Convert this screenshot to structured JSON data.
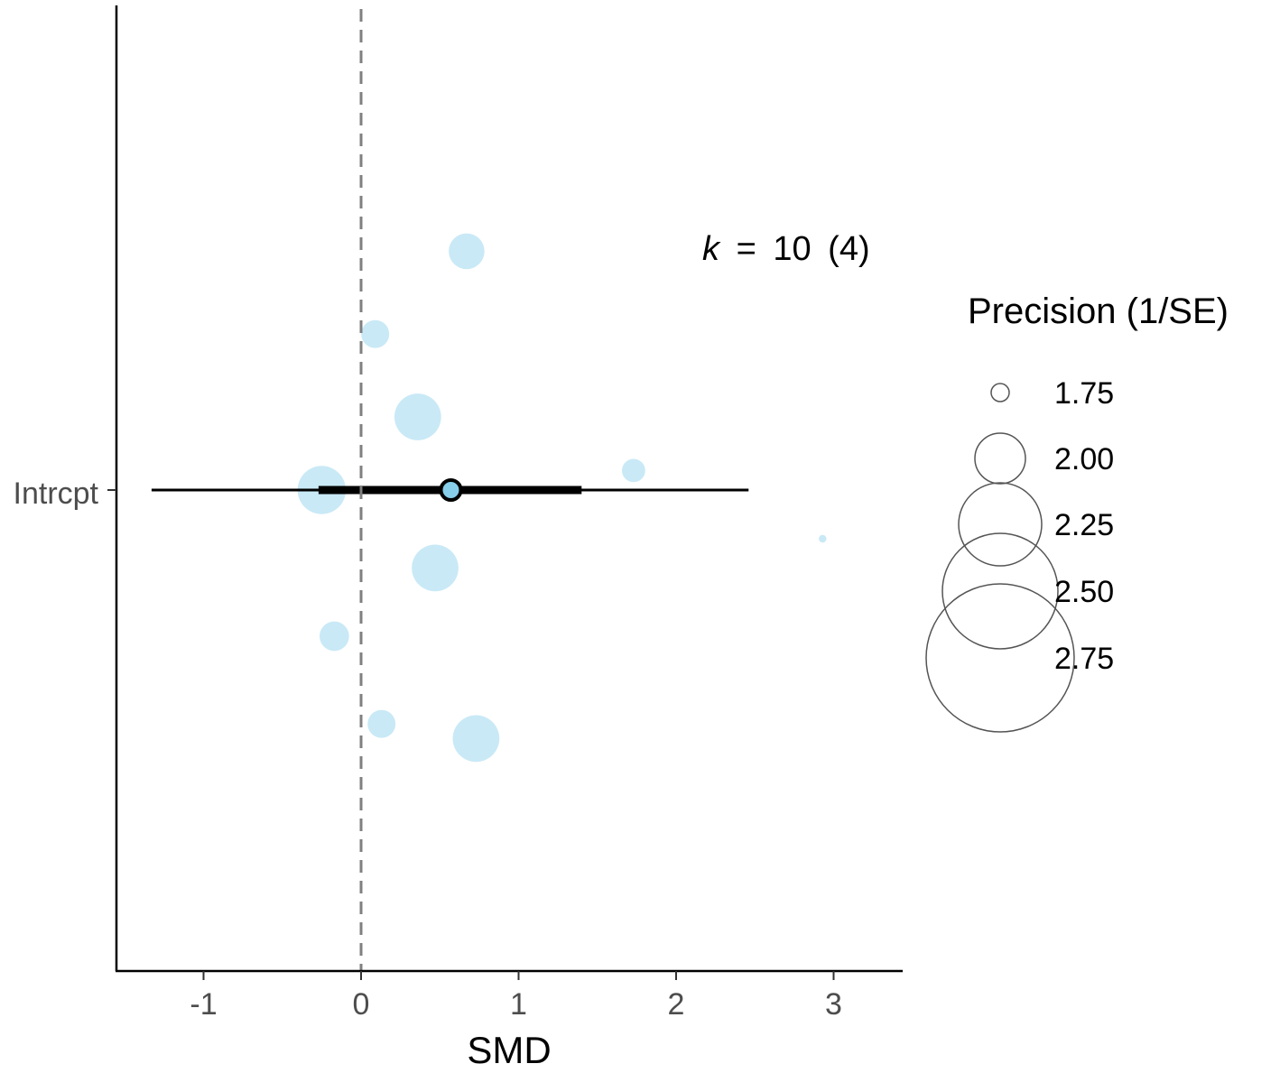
{
  "chart_data": {
    "type": "scatter",
    "subtype": "orchard-plot",
    "xlabel": "SMD",
    "ylabel": "",
    "xlim": [
      -1.58,
      3.45
    ],
    "xticks": [
      -1,
      0,
      1,
      2,
      3
    ],
    "xtick_labels": [
      "-1",
      "0",
      "1",
      "2",
      "3"
    ],
    "ytick_labels": [
      "Intrcpt"
    ],
    "reference_line": {
      "x": 0,
      "style": "dashed",
      "color": "#808080"
    },
    "estimate": {
      "label": "Intrcpt",
      "mean": 0.57,
      "ci": [
        -0.27,
        1.4
      ],
      "pi": [
        -1.33,
        2.46
      ],
      "point_fill": "#87CEEB"
    },
    "points": [
      {
        "x": 0.67,
        "jitter": 0.49,
        "precision": 2.5
      },
      {
        "x": 0.09,
        "jitter": 0.32,
        "precision": 2.25
      },
      {
        "x": 0.36,
        "jitter": 0.15,
        "precision": 2.85
      },
      {
        "x": 1.73,
        "jitter": 0.04,
        "precision": 2.1
      },
      {
        "x": -0.25,
        "jitter": 0.0,
        "precision": 2.9
      },
      {
        "x": 2.93,
        "jitter": -0.1,
        "precision": 1.6
      },
      {
        "x": 0.47,
        "jitter": -0.16,
        "precision": 2.85
      },
      {
        "x": -0.17,
        "jitter": -0.3,
        "precision": 2.3
      },
      {
        "x": 0.13,
        "jitter": -0.48,
        "precision": 2.25
      },
      {
        "x": 0.73,
        "jitter": -0.51,
        "precision": 2.85
      }
    ],
    "point_color": "#87CEEB",
    "point_alpha": 0.45,
    "annotation": {
      "k_symbol": "k",
      "equals": "=",
      "text": "10",
      "paren": "(4)"
    },
    "legend": {
      "title": "Precision (1/SE)",
      "position": "right",
      "entries": [
        {
          "label": "1.75",
          "value": 1.75
        },
        {
          "label": "2.00",
          "value": 2.0
        },
        {
          "label": "2.25",
          "value": 2.25
        },
        {
          "label": "2.50",
          "value": 2.5
        },
        {
          "label": "2.75",
          "value": 2.75
        }
      ]
    }
  }
}
